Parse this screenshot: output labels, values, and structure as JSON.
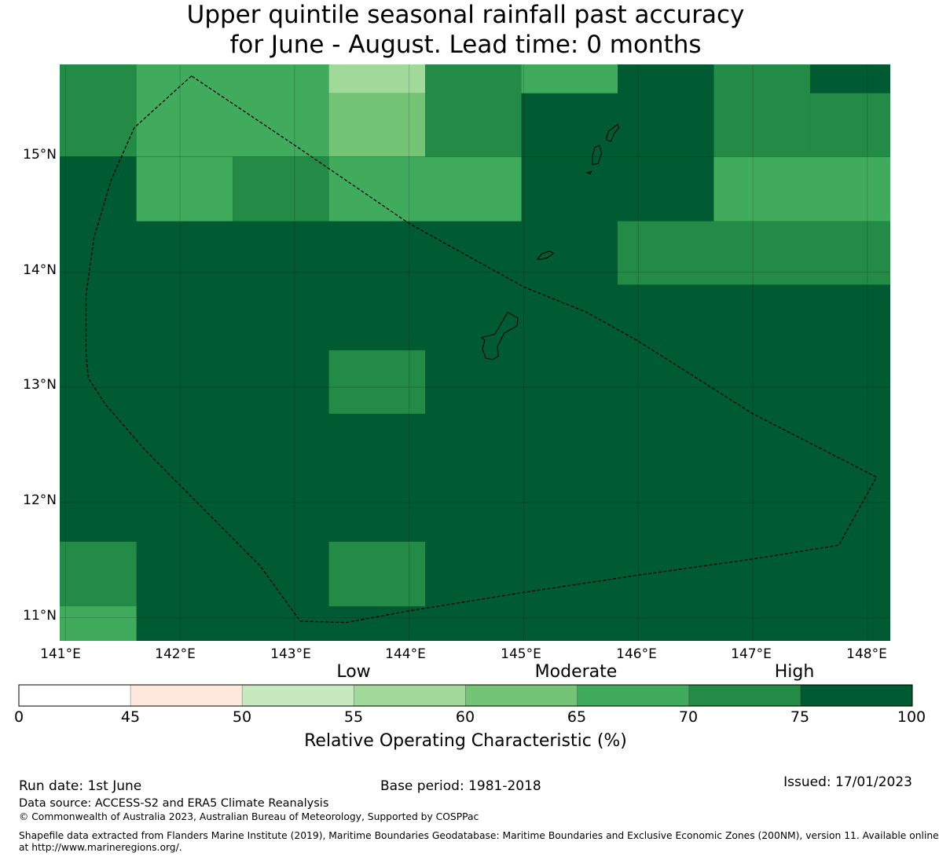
{
  "title_line1": "Upper quintile seasonal rainfall past accuracy",
  "title_line2": "for June - August. Lead time: 0 months",
  "map": {
    "lat_labels": [
      "15°N",
      "14°N",
      "13°N",
      "12°N",
      "11°N"
    ],
    "lon_labels": [
      "141°E",
      "142°E",
      "143°E",
      "144°E",
      "145°E",
      "146°E",
      "147°E",
      "148°E"
    ],
    "lon_range": [
      140.95,
      148.2
    ],
    "lat_range": [
      10.8,
      15.8
    ],
    "colors": {
      "c70_75": "#238b45",
      "c65_70": "#41ab5d",
      "c60_65": "#74c476",
      "c55_60": "#a1d99b",
      "c75_100": "#005a32"
    },
    "cells": [
      {
        "lon": [
          140.95,
          141.62
        ],
        "lat": [
          15.0,
          15.8
        ],
        "category": "70-75"
      },
      {
        "lon": [
          141.62,
          143.3
        ],
        "lat": [
          15.0,
          15.8
        ],
        "category": "65-70"
      },
      {
        "lon": [
          143.3,
          144.14
        ],
        "lat": [
          15.55,
          15.8
        ],
        "category": "55-60"
      },
      {
        "lon": [
          143.3,
          144.14
        ],
        "lat": [
          15.0,
          15.55
        ],
        "category": "60-65"
      },
      {
        "lon": [
          144.14,
          144.98
        ],
        "lat": [
          15.0,
          15.8
        ],
        "category": "70-75"
      },
      {
        "lon": [
          144.98,
          145.82
        ],
        "lat": [
          15.55,
          15.8
        ],
        "category": "65-70"
      },
      {
        "lon": [
          146.66,
          147.5
        ],
        "lat": [
          15.0,
          15.8
        ],
        "category": "70-75"
      },
      {
        "lon": [
          147.5,
          148.2
        ],
        "lat": [
          15.0,
          15.55
        ],
        "category": "70-75"
      },
      {
        "lon": [
          141.62,
          142.46
        ],
        "lat": [
          14.44,
          15.0
        ],
        "category": "65-70"
      },
      {
        "lon": [
          142.46,
          143.3
        ],
        "lat": [
          14.44,
          15.0
        ],
        "category": "70-75"
      },
      {
        "lon": [
          143.3,
          144.98
        ],
        "lat": [
          14.44,
          15.0
        ],
        "category": "65-70"
      },
      {
        "lon": [
          146.66,
          148.2
        ],
        "lat": [
          14.44,
          15.0
        ],
        "category": "65-70"
      },
      {
        "lon": [
          145.82,
          148.2
        ],
        "lat": [
          13.89,
          14.44
        ],
        "category": "70-75"
      },
      {
        "lon": [
          143.3,
          144.14
        ],
        "lat": [
          12.77,
          13.32
        ],
        "category": "70-75"
      },
      {
        "lon": [
          140.95,
          141.62
        ],
        "lat": [
          11.1,
          11.66
        ],
        "category": "70-75"
      },
      {
        "lon": [
          140.95,
          141.62
        ],
        "lat": [
          10.8,
          11.1
        ],
        "category": "65-70"
      },
      {
        "lon": [
          143.3,
          144.14
        ],
        "lat": [
          11.1,
          11.66
        ],
        "category": "70-75"
      }
    ],
    "eez_boundary": [
      [
        142.1,
        15.7
      ],
      [
        141.6,
        15.25
      ],
      [
        141.4,
        14.8
      ],
      [
        141.25,
        14.3
      ],
      [
        141.18,
        13.8
      ],
      [
        141.18,
        13.3
      ],
      [
        141.2,
        13.08
      ],
      [
        141.35,
        12.85
      ],
      [
        141.7,
        12.45
      ],
      [
        142.2,
        11.95
      ],
      [
        142.7,
        11.45
      ],
      [
        143.05,
        10.97
      ],
      [
        143.45,
        10.96
      ],
      [
        144.0,
        11.06
      ],
      [
        145.0,
        11.22
      ],
      [
        146.0,
        11.37
      ],
      [
        147.0,
        11.51
      ],
      [
        147.75,
        11.63
      ],
      [
        148.08,
        12.22
      ],
      [
        147.0,
        12.77
      ],
      [
        146.0,
        13.4
      ],
      [
        145.55,
        13.65
      ],
      [
        145.0,
        13.87
      ],
      [
        144.0,
        14.42
      ],
      [
        143.0,
        15.1
      ],
      [
        142.1,
        15.7
      ]
    ],
    "islands": [
      [
        [
          144.63,
          13.43
        ],
        [
          144.75,
          13.46
        ],
        [
          144.82,
          13.58
        ],
        [
          144.86,
          13.65
        ],
        [
          144.95,
          13.6
        ],
        [
          144.94,
          13.53
        ],
        [
          144.83,
          13.47
        ],
        [
          144.77,
          13.35
        ],
        [
          144.78,
          13.27
        ],
        [
          144.73,
          13.24
        ],
        [
          144.67,
          13.25
        ],
        [
          144.64,
          13.33
        ],
        [
          144.66,
          13.41
        ],
        [
          144.63,
          13.43
        ]
      ],
      [
        [
          145.12,
          14.11
        ],
        [
          145.16,
          14.16
        ],
        [
          145.23,
          14.18
        ],
        [
          145.26,
          14.16
        ],
        [
          145.2,
          14.12
        ],
        [
          145.15,
          14.11
        ],
        [
          145.12,
          14.11
        ]
      ],
      [
        [
          145.72,
          15.15
        ],
        [
          145.74,
          15.22
        ],
        [
          145.78,
          15.25
        ],
        [
          145.82,
          15.28
        ],
        [
          145.83,
          15.25
        ],
        [
          145.79,
          15.2
        ],
        [
          145.76,
          15.13
        ],
        [
          145.72,
          15.15
        ]
      ],
      [
        [
          145.6,
          15.0
        ],
        [
          145.62,
          15.08
        ],
        [
          145.66,
          15.1
        ],
        [
          145.68,
          15.03
        ],
        [
          145.65,
          14.94
        ],
        [
          145.6,
          14.93
        ],
        [
          145.6,
          15.0
        ]
      ],
      [
        [
          145.55,
          14.86
        ],
        [
          145.59,
          14.87
        ],
        [
          145.58,
          14.85
        ],
        [
          145.55,
          14.86
        ]
      ]
    ]
  },
  "colorbar": {
    "categories": [
      "Low",
      "Moderate",
      "High"
    ],
    "ticks": [
      "0",
      "45",
      "50",
      "55",
      "60",
      "65",
      "70",
      "75",
      "100"
    ],
    "colors": [
      "#ffffff",
      "#fee8dd",
      "#c7e9c0",
      "#a1d99b",
      "#74c476",
      "#41ab5d",
      "#238b45",
      "#005a32"
    ],
    "title": "Relative Operating Characteristic (%)"
  },
  "footer": {
    "run_date": "Run date: 1st June",
    "base_period": "Base period: 1981-2018",
    "issued": "Issued: 17/01/2023",
    "data_source": "Data source: ACCESS-S2 and ERA5 Climate Reanalysis",
    "copyright": "© Commonwealth of Australia 2023, Australian Bureau of Meteorology, Supported by COSPPac",
    "shapefile_line1": "Shapefile data extracted from Flanders Marine Institute (2019), Maritime Boundaries Geodatabase: Maritime Boundaries and Exclusive Economic Zones (200NM), version 11. Available online",
    "shapefile_line2": "at http://www.marineregions.org/."
  }
}
